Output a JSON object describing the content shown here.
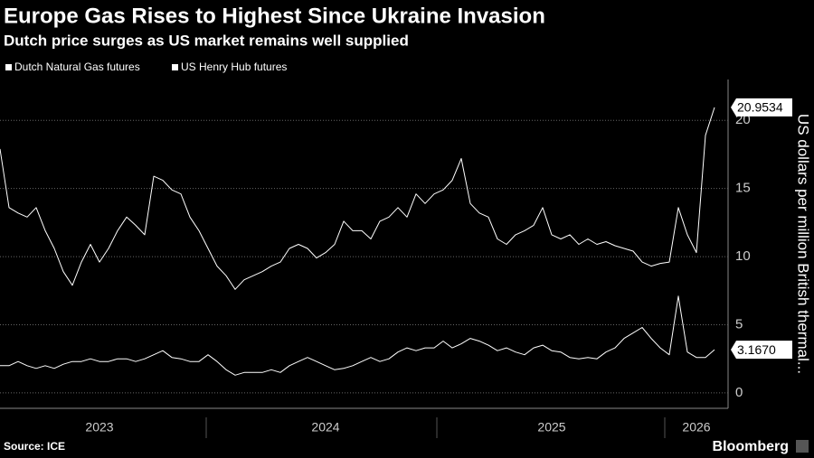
{
  "chart_data": {
    "type": "line",
    "title": "Europe Gas Rises to Highest Since Ukraine Invasion",
    "subtitle": "Dutch price surges as US market remains well supplied",
    "y_label": "US dollars per million British thermal...",
    "source": "Source: ICE",
    "brand": "Bloomberg",
    "categories": [
      null,
      null,
      null,
      null,
      null,
      null,
      null,
      null,
      null,
      null,
      null,
      "2023",
      null,
      null,
      null,
      null,
      null,
      null,
      null,
      null,
      null,
      null,
      null,
      null,
      null,
      null,
      null,
      null,
      null,
      null,
      null,
      null,
      null,
      null,
      null,
      null,
      "2024",
      null,
      null,
      null,
      null,
      null,
      null,
      null,
      null,
      null,
      null,
      null,
      null,
      null,
      null,
      null,
      null,
      null,
      null,
      null,
      null,
      null,
      null,
      null,
      null,
      "2025",
      null,
      null,
      null,
      null,
      null,
      null,
      null,
      null,
      null,
      null,
      null,
      null,
      null,
      null,
      null,
      "2026",
      null,
      null
    ],
    "series": [
      {
        "name": "Dutch Natural Gas futures",
        "color": "#ffffff",
        "values": [
          17.9,
          13.6,
          13.2,
          12.9,
          13.6,
          11.9,
          10.6,
          8.9,
          7.9,
          9.6,
          10.9,
          9.6,
          10.6,
          11.9,
          12.9,
          12.3,
          11.6,
          15.9,
          15.6,
          14.9,
          14.6,
          12.9,
          11.9,
          10.6,
          9.3,
          8.6,
          7.6,
          8.3,
          8.6,
          8.9,
          9.3,
          9.6,
          10.6,
          10.9,
          10.6,
          9.9,
          10.3,
          10.9,
          12.6,
          11.9,
          11.9,
          11.3,
          12.6,
          12.9,
          13.6,
          12.9,
          14.6,
          13.9,
          14.6,
          14.9,
          15.6,
          17.2,
          13.9,
          13.2,
          12.9,
          11.3,
          10.9,
          11.6,
          11.9,
          12.3,
          13.6,
          11.6,
          11.3,
          11.6,
          10.9,
          11.3,
          10.9,
          11.1,
          10.8,
          10.6,
          10.4,
          9.6,
          9.3,
          9.5,
          9.6,
          13.6,
          11.6,
          10.3,
          18.9,
          20.9534
        ],
        "value_labels": [
          null,
          null,
          null,
          null,
          null,
          null,
          null,
          null,
          null,
          null,
          null,
          null,
          null,
          null,
          null,
          null,
          null,
          null,
          null,
          null,
          null,
          null,
          null,
          null,
          null,
          null,
          null,
          null,
          null,
          null,
          null,
          null,
          null,
          null,
          null,
          null,
          null,
          null,
          null,
          null,
          null,
          null,
          null,
          null,
          null,
          null,
          null,
          null,
          null,
          null,
          null,
          null,
          null,
          null,
          null,
          null,
          null,
          null,
          null,
          null,
          null,
          null,
          null,
          null,
          null,
          null,
          null,
          null,
          null,
          null,
          null,
          null,
          null,
          null,
          null,
          null,
          null,
          null,
          null,
          "20.9534"
        ]
      },
      {
        "name": "US Henry Hub futures",
        "color": "#ffffff",
        "values": [
          2.0,
          2.0,
          2.3,
          2.0,
          1.8,
          2.0,
          1.8,
          2.1,
          2.3,
          2.3,
          2.5,
          2.3,
          2.3,
          2.5,
          2.5,
          2.3,
          2.5,
          2.8,
          3.1,
          2.6,
          2.5,
          2.3,
          2.3,
          2.8,
          2.3,
          1.7,
          1.3,
          1.5,
          1.5,
          1.5,
          1.7,
          1.5,
          2.0,
          2.3,
          2.6,
          2.3,
          2.0,
          1.7,
          1.8,
          2.0,
          2.3,
          2.6,
          2.3,
          2.5,
          3.0,
          3.3,
          3.1,
          3.3,
          3.3,
          3.8,
          3.3,
          3.6,
          4.0,
          3.8,
          3.5,
          3.1,
          3.3,
          3.0,
          2.8,
          3.3,
          3.5,
          3.1,
          3.0,
          2.6,
          2.5,
          2.6,
          2.5,
          3.0,
          3.3,
          4.0,
          4.4,
          4.8,
          4.0,
          3.3,
          2.8,
          7.1,
          3.0,
          2.6,
          2.6,
          3.167
        ],
        "value_labels": [
          null,
          null,
          null,
          null,
          null,
          null,
          null,
          null,
          null,
          null,
          null,
          null,
          null,
          null,
          null,
          null,
          null,
          null,
          null,
          null,
          null,
          null,
          null,
          null,
          null,
          null,
          null,
          null,
          null,
          null,
          null,
          null,
          null,
          null,
          null,
          null,
          null,
          null,
          null,
          null,
          null,
          null,
          null,
          null,
          null,
          null,
          null,
          null,
          null,
          null,
          null,
          null,
          null,
          null,
          null,
          null,
          null,
          null,
          null,
          null,
          null,
          null,
          null,
          null,
          null,
          null,
          null,
          null,
          null,
          null,
          null,
          null,
          null,
          null,
          null,
          null,
          null,
          null,
          null,
          "3.1670"
        ]
      }
    ],
    "ylim": [
      -1,
      23
    ],
    "yticks": [
      0,
      5,
      10,
      15,
      20
    ],
    "grid": true
  }
}
